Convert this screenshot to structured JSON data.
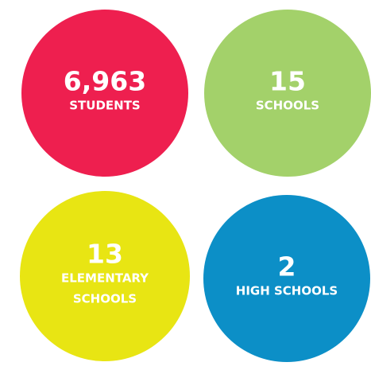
{
  "stats": [
    {
      "value": "6,963",
      "label_lines": [
        "STUDENTS"
      ],
      "color": "#ee1f4f"
    },
    {
      "value": "15",
      "label_lines": [
        "SCHOOLS"
      ],
      "color": "#a3d16a"
    },
    {
      "value": "13",
      "label_lines": [
        "ELEMENTARY",
        "SCHOOLS"
      ],
      "color": "#e8e513"
    },
    {
      "value": "2",
      "label_lines": [
        "HIGH SCHOOLS"
      ],
      "color": "#0c8fc7"
    }
  ]
}
